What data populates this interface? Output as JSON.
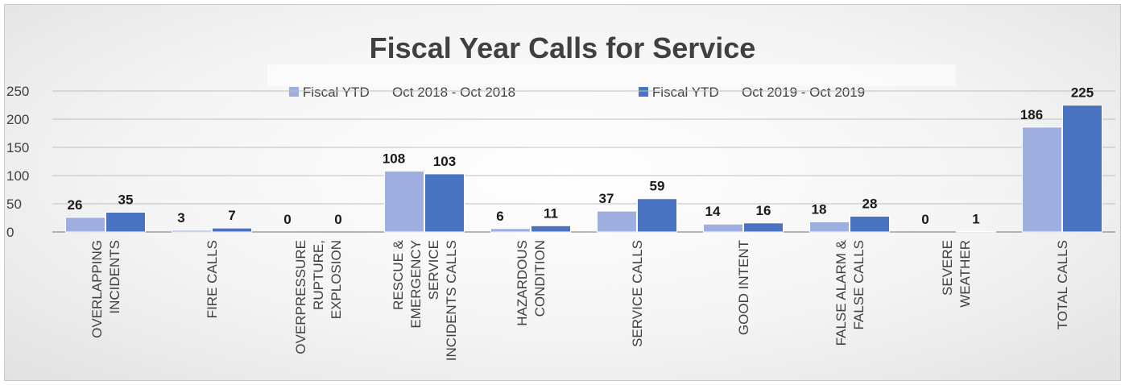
{
  "chart_data": {
    "type": "bar",
    "title": "Fiscal Year Calls for Service",
    "categories": [
      [
        "OVERLAPPING",
        "INCIDENTS"
      ],
      [
        "FIRE CALLS"
      ],
      [
        "OVERPRESSURE",
        "RUPTURE,",
        "EXPLOSION"
      ],
      [
        "RESCUE &",
        "EMERGENCY",
        "SERVICE",
        "INCIDENTS CALLS"
      ],
      [
        "HAZARDOUS",
        "CONDITION"
      ],
      [
        "SERVICE CALLS"
      ],
      [
        "GOOD INTENT"
      ],
      [
        "FALSE ALARM &",
        "FALSE CALLS"
      ],
      [
        "SEVERE",
        "WEATHER"
      ],
      [
        "TOTAL CALLS"
      ]
    ],
    "series": [
      {
        "name": "Fiscal YTD      Oct 2018 - Oct 2018",
        "color": "#9eaede",
        "values": [
          26,
          3,
          0,
          108,
          6,
          37,
          14,
          18,
          0,
          186
        ]
      },
      {
        "name": "Fiscal YTD      Oct 2019 - Oct 2019",
        "color": "#4a74c2",
        "values": [
          35,
          7,
          0,
          103,
          11,
          59,
          16,
          28,
          1,
          225
        ]
      }
    ],
    "yticks": [
      0,
      50,
      100,
      150,
      200,
      250
    ],
    "ylim": [
      0,
      250
    ],
    "grid": true,
    "legend_position": "top"
  }
}
